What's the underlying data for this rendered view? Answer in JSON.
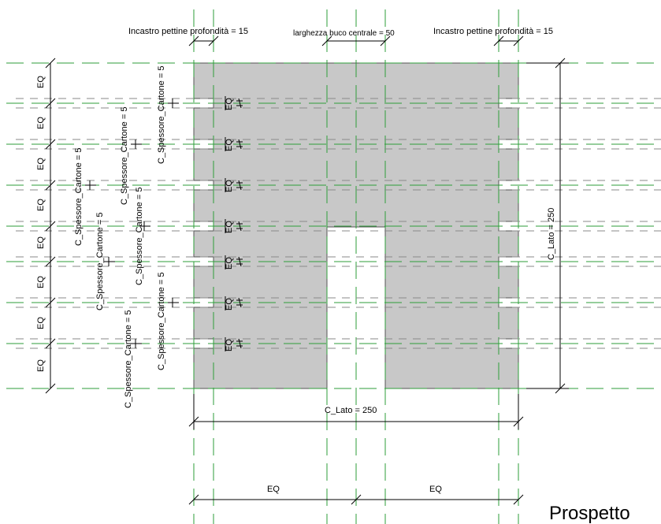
{
  "view_title": "Prospetto",
  "top_dimensions": {
    "left_slot": "Incastro pettine profondità = 15",
    "center_hole": "larghezza buco centrale = 50",
    "right_slot": "Incastro pettine profondità = 15"
  },
  "side_dimensions": {
    "right_side": "C_Lato = 250",
    "bottom": "C_Lato = 250",
    "eq": "EQ",
    "eq_marker": "EQ"
  },
  "thickness_labels": [
    "C_Spessore_Cartone = 5",
    "C_Spessore_Cartone = 5",
    "C_Spessore_Cartone = 5",
    "C_Spessore_Cartone = 5",
    "C_Spessore_Cartone = 5",
    "C_Spessore_Cartone = 5",
    "C_Spessore_Cartone = 5"
  ],
  "left_eq_count": 8,
  "bottom_eq_count": 2,
  "colors": {
    "panel_fill": "#c8c8c8",
    "panel_stroke": "#555555",
    "reference_plane": "#2e9e3a",
    "dimension_line": "#000000"
  }
}
